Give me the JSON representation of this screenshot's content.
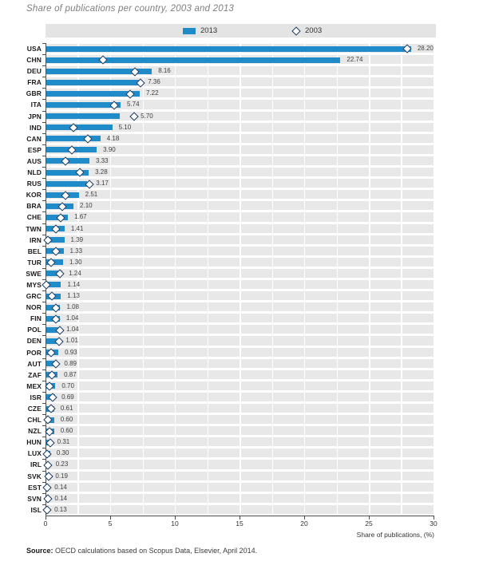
{
  "title": "Share of publications per country, 2003 and 2013",
  "legend": {
    "items": [
      {
        "label": "2013",
        "marker": "bar-swatch-icon"
      },
      {
        "label": "2003",
        "marker": "diamond-icon"
      }
    ]
  },
  "axis": {
    "x_ticks": [
      "0",
      "5",
      "10",
      "15",
      "20",
      "25",
      "30"
    ],
    "x_title": "Share of publications, (%)"
  },
  "source": {
    "prefix": "Source:",
    "text": " OECD calculations based on Scopus Data, Elsevier, April 2014."
  },
  "colors": {
    "bar_2013": "#1f8cc9",
    "diamond_border": "#17375e",
    "diamond_fill": "#ffffff",
    "row_band": "#e8e8e8",
    "legend_bg": "#e4e4e4",
    "axis_line": "#4d4d4d",
    "title_text": "#7f7f7f"
  },
  "chart_data": {
    "type": "bar",
    "orientation": "horizontal",
    "title": "Share of publications per country, 2003 and 2013",
    "xlabel": "Share of publications, (%)",
    "ylabel": "",
    "xlim": [
      0,
      30
    ],
    "x_tick_values": [
      0,
      5,
      10,
      15,
      20,
      25,
      30
    ],
    "minor_gridline_step": 2.5,
    "grid": true,
    "legend_position": "top",
    "categories": [
      "USA",
      "CHN",
      "DEU",
      "FRA",
      "GBR",
      "ITA",
      "JPN",
      "IND",
      "CAN",
      "ESP",
      "AUS",
      "NLD",
      "RUS",
      "KOR",
      "BRA",
      "CHE",
      "TWN",
      "IRN",
      "BEL",
      "TUR",
      "SWE",
      "MYS",
      "GRC",
      "NOR",
      "FIN",
      "POL",
      "DEN",
      "POR",
      "AUT",
      "ZAF",
      "MEX",
      "ISR",
      "CZE",
      "CHL",
      "NZL",
      "HUN",
      "LUX",
      "IRL",
      "SVK",
      "EST",
      "SVN",
      "ISL"
    ],
    "series": [
      {
        "name": "2013",
        "style": "bar",
        "values": [
          28.2,
          22.74,
          8.16,
          7.36,
          7.22,
          5.74,
          5.7,
          5.1,
          4.18,
          3.9,
          3.33,
          3.28,
          3.17,
          2.51,
          2.1,
          1.67,
          1.41,
          1.39,
          1.33,
          1.3,
          1.24,
          1.14,
          1.13,
          1.08,
          1.04,
          1.04,
          1.01,
          0.93,
          0.89,
          0.87,
          0.7,
          0.69,
          0.61,
          0.6,
          0.6,
          0.31,
          0.3,
          0.23,
          0.19,
          0.14,
          0.14,
          0.13
        ]
      },
      {
        "name": "2003",
        "style": "diamond-marker",
        "values": [
          27.9,
          4.4,
          6.9,
          7.3,
          6.5,
          5.28,
          6.8,
          2.14,
          3.25,
          1.97,
          1.5,
          2.63,
          3.35,
          1.5,
          1.26,
          1.12,
          0.78,
          0.16,
          0.78,
          0.39,
          1.05,
          0.05,
          0.48,
          0.76,
          0.74,
          1.06,
          0.99,
          0.4,
          0.75,
          0.44,
          0.28,
          0.5,
          0.4,
          0.15,
          0.28,
          0.35,
          0.08,
          0.16,
          0.21,
          0.08,
          0.15,
          0.1
        ]
      }
    ],
    "bar_labels": [
      "28.20",
      "22.74",
      "8.16",
      "7.36",
      "7.22",
      "5.74",
      "5.70",
      "5.10",
      "4.18",
      "3.90",
      "3.33",
      "3.28",
      "3.17",
      "2.51",
      "2.10",
      "1.67",
      "1.41",
      "1.39",
      "1.33",
      "1.30",
      "1.24",
      "1.14",
      "1.13",
      "1.08",
      "1.04",
      "1.04",
      "1.01",
      "0.93",
      "0.89",
      "0.87",
      "0.70",
      "0.69",
      "0.61",
      "0.60",
      "0.60",
      "0.31",
      "0.30",
      "0.23",
      "0.19",
      "0.14",
      "0.14",
      "0.13"
    ]
  }
}
